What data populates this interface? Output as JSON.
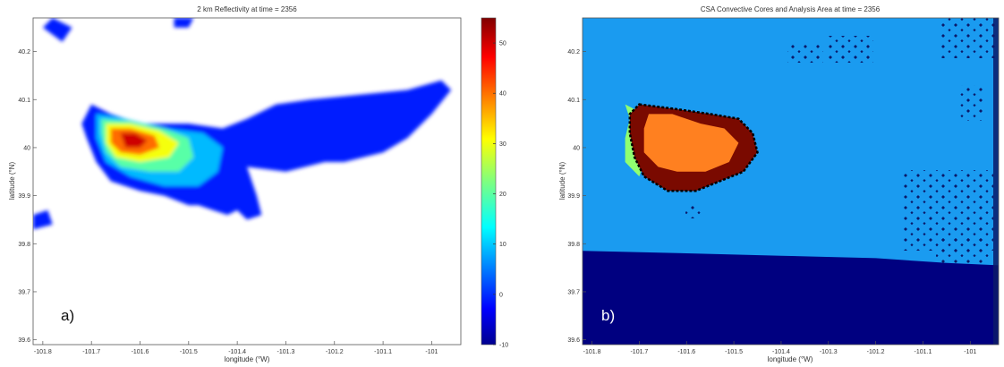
{
  "chart_data": [
    {
      "type": "heatmap",
      "panel_label": "a)",
      "title": "2 km Reflectivity at time = 2356",
      "xlabel": "longitude (°W)",
      "ylabel": "latitude (°N)",
      "xlim": [
        -101.82,
        -100.94
      ],
      "ylim": [
        39.59,
        40.27
      ],
      "x_ticks": [
        "-101.8",
        "-101.7",
        "-101.6",
        "-101.5",
        "-101.4",
        "-101.3",
        "-101.2",
        "-101.1",
        "-101"
      ],
      "x_tick_values": [
        -101.8,
        -101.7,
        -101.6,
        -101.5,
        -101.4,
        -101.3,
        -101.2,
        -101.1,
        -101.0
      ],
      "y_ticks": [
        "39.6",
        "39.7",
        "39.8",
        "39.9",
        "40",
        "40.1",
        "40.2"
      ],
      "y_tick_values": [
        39.6,
        39.7,
        39.8,
        39.9,
        40.0,
        40.1,
        40.2
      ],
      "colorbar": {
        "colormap": "jet",
        "range": [
          -10,
          55
        ],
        "ticks": [
          "-10",
          "0",
          "10",
          "20",
          "30",
          "40",
          "50"
        ],
        "tick_values": [
          -10,
          0,
          10,
          20,
          30,
          40,
          50
        ]
      },
      "colors": {
        "low": "#00008f",
        "mid": "#7fff7f",
        "high": "#800000",
        "no_data": "#ffffff"
      },
      "field": {
        "value_units": "dBZ",
        "core": {
          "center": [
            -101.62,
            40.015
          ],
          "max_value": 55
        },
        "regions": [
          {
            "polygon": [
              [
                -101.71,
                40.07
              ],
              [
                -101.7,
                40.09
              ],
              [
                -101.66,
                40.07
              ],
              [
                -101.6,
                40.05
              ],
              [
                -101.5,
                40.05
              ],
              [
                -101.43,
                40.04
              ],
              [
                -101.38,
                40.06
              ],
              [
                -101.32,
                40.09
              ],
              [
                -101.25,
                40.1
              ],
              [
                -101.15,
                40.11
              ],
              [
                -101.05,
                40.12
              ],
              [
                -100.98,
                40.14
              ],
              [
                -100.96,
                40.12
              ],
              [
                -101.0,
                40.07
              ],
              [
                -101.05,
                40.02
              ],
              [
                -101.1,
                39.99
              ],
              [
                -101.18,
                39.97
              ],
              [
                -101.22,
                39.97
              ],
              [
                -101.3,
                39.95
              ],
              [
                -101.38,
                39.96
              ],
              [
                -101.36,
                39.9
              ],
              [
                -101.35,
                39.86
              ],
              [
                -101.38,
                39.85
              ],
              [
                -101.4,
                39.87
              ],
              [
                -101.42,
                39.86
              ],
              [
                -101.45,
                39.87
              ],
              [
                -101.48,
                39.88
              ],
              [
                -101.5,
                39.88
              ],
              [
                -101.55,
                39.9
              ],
              [
                -101.6,
                39.91
              ],
              [
                -101.66,
                39.93
              ],
              [
                -101.69,
                39.97
              ],
              [
                -101.71,
                40.02
              ],
              [
                -101.72,
                40.05
              ]
            ],
            "value": 0
          },
          {
            "polygon": [
              [
                -101.8,
                40.25
              ],
              [
                -101.78,
                40.27
              ],
              [
                -101.74,
                40.25
              ],
              [
                -101.76,
                40.22
              ]
            ],
            "value": 0
          },
          {
            "polygon": [
              [
                -101.82,
                39.86
              ],
              [
                -101.79,
                39.87
              ],
              [
                -101.78,
                39.84
              ],
              [
                -101.82,
                39.83
              ]
            ],
            "value": 0
          },
          {
            "polygon": [
              [
                -101.53,
                40.27
              ],
              [
                -101.49,
                40.27
              ],
              [
                -101.5,
                40.25
              ],
              [
                -101.53,
                40.25
              ]
            ],
            "value": 0
          },
          {
            "polygon": [
              [
                -101.69,
                40.07
              ],
              [
                -101.63,
                40.06
              ],
              [
                -101.55,
                40.04
              ],
              [
                -101.47,
                40.03
              ],
              [
                -101.43,
                40.0
              ],
              [
                -101.44,
                39.95
              ],
              [
                -101.48,
                39.92
              ],
              [
                -101.55,
                39.92
              ],
              [
                -101.62,
                39.94
              ],
              [
                -101.67,
                39.97
              ],
              [
                -101.69,
                40.02
              ]
            ],
            "value": 10
          },
          {
            "polygon": [
              [
                -101.68,
                40.06
              ],
              [
                -101.62,
                40.055
              ],
              [
                -101.55,
                40.04
              ],
              [
                -101.5,
                40.02
              ],
              [
                -101.49,
                39.98
              ],
              [
                -101.52,
                39.95
              ],
              [
                -101.58,
                39.95
              ],
              [
                -101.64,
                39.96
              ],
              [
                -101.67,
                39.99
              ],
              [
                -101.68,
                40.03
              ]
            ],
            "value": 20
          },
          {
            "polygon": [
              [
                -101.67,
                40.05
              ],
              [
                -101.62,
                40.05
              ],
              [
                -101.56,
                40.035
              ],
              [
                -101.52,
                40.01
              ],
              [
                -101.54,
                39.98
              ],
              [
                -101.6,
                39.97
              ],
              [
                -101.65,
                39.98
              ],
              [
                -101.67,
                40.01
              ]
            ],
            "value": 30
          },
          {
            "polygon": [
              [
                -101.66,
                40.04
              ],
              [
                -101.62,
                40.04
              ],
              [
                -101.57,
                40.025
              ],
              [
                -101.56,
                40.0
              ],
              [
                -101.6,
                39.985
              ],
              [
                -101.64,
                39.99
              ],
              [
                -101.66,
                40.01
              ]
            ],
            "value": 40
          },
          {
            "polygon": [
              [
                -101.64,
                40.03
              ],
              [
                -101.61,
                40.03
              ],
              [
                -101.585,
                40.015
              ],
              [
                -101.6,
                40.0
              ],
              [
                -101.63,
                40.0
              ]
            ],
            "value": 50
          }
        ]
      }
    },
    {
      "type": "heatmap",
      "panel_label": "b)",
      "title": "CSA Convective Cores and Analysis Area at time = 2356",
      "xlabel": "longitude (°W)",
      "ylabel": "latitude (°N)",
      "xlim": [
        -101.82,
        -100.94
      ],
      "ylim": [
        39.59,
        40.27
      ],
      "x_ticks": [
        "-101.8",
        "-101.7",
        "-101.6",
        "-101.5",
        "-101.4",
        "-101.3",
        "-101.2",
        "-101.1",
        "-101"
      ],
      "x_tick_values": [
        -101.8,
        -101.7,
        -101.6,
        -101.5,
        -101.4,
        -101.3,
        -101.2,
        -101.1,
        -101.0
      ],
      "y_ticks": [
        "39.6",
        "39.7",
        "39.8",
        "39.9",
        "40",
        "40.1",
        "40.2"
      ],
      "y_tick_values": [
        39.6,
        39.7,
        39.8,
        39.9,
        40.0,
        40.1,
        40.2
      ],
      "colors": {
        "background": "#1a9bf0",
        "lower_region": "#000080",
        "ring": "#7a0a00",
        "core": "#ff8020",
        "fringe": "#90ff70",
        "speckle": "#0a1a6a"
      },
      "field": {
        "lower_boundary": [
          [
            -101.82,
            39.785
          ],
          [
            -101.6,
            39.78
          ],
          [
            -101.4,
            39.775
          ],
          [
            -101.2,
            39.77
          ],
          [
            -101.05,
            39.76
          ],
          [
            -100.94,
            39.755
          ]
        ],
        "analysis_ring": [
          [
            -101.7,
            40.09
          ],
          [
            -101.62,
            40.08
          ],
          [
            -101.55,
            40.07
          ],
          [
            -101.49,
            40.06
          ],
          [
            -101.46,
            40.03
          ],
          [
            -101.45,
            39.99
          ],
          [
            -101.48,
            39.95
          ],
          [
            -101.53,
            39.93
          ],
          [
            -101.58,
            39.91
          ],
          [
            -101.64,
            39.91
          ],
          [
            -101.69,
            39.94
          ],
          [
            -101.71,
            39.98
          ],
          [
            -101.72,
            40.03
          ],
          [
            -101.72,
            40.07
          ]
        ],
        "convective_core": [
          [
            -101.68,
            40.07
          ],
          [
            -101.63,
            40.07
          ],
          [
            -101.57,
            40.05
          ],
          [
            -101.52,
            40.04
          ],
          [
            -101.49,
            40.01
          ],
          [
            -101.51,
            39.97
          ],
          [
            -101.56,
            39.95
          ],
          [
            -101.62,
            39.95
          ],
          [
            -101.66,
            39.96
          ],
          [
            -101.69,
            39.99
          ],
          [
            -101.69,
            40.04
          ]
        ],
        "fringe": [
          [
            -101.73,
            40.09
          ],
          [
            -101.72,
            40.06
          ],
          [
            -101.73,
            40.02
          ],
          [
            -101.73,
            39.97
          ],
          [
            -101.71,
            39.95
          ],
          [
            -101.7,
            39.94
          ],
          [
            -101.69,
            39.97
          ],
          [
            -101.7,
            40.02
          ],
          [
            -101.7,
            40.06
          ],
          [
            -101.71,
            40.08
          ]
        ]
      }
    }
  ]
}
